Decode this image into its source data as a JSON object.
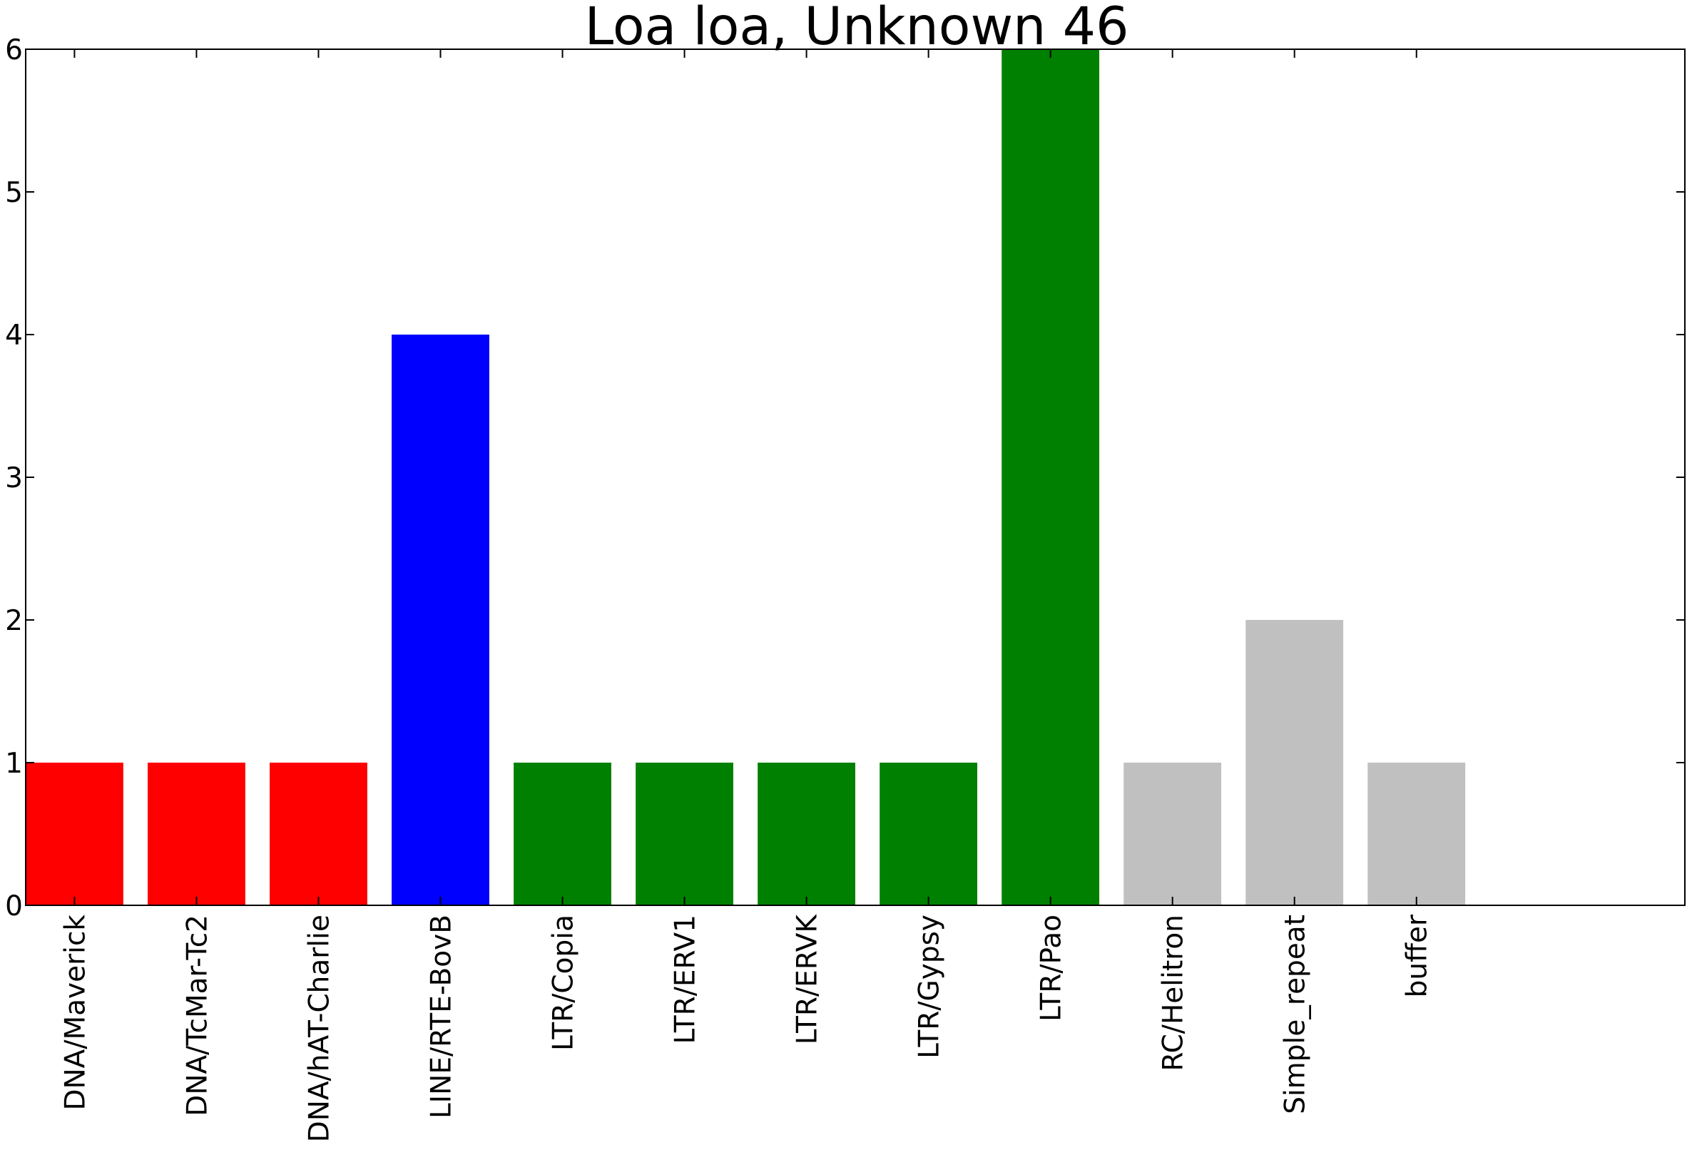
{
  "chart_data": {
    "type": "bar",
    "title": "Loa loa, Unknown 46",
    "xlabel": "",
    "ylabel": "",
    "categories": [
      "DNA/Maverick",
      "DNA/TcMar-Tc2",
      "DNA/hAT-Charlie",
      "LINE/RTE-BovB",
      "LTR/Copia",
      "LTR/ERV1",
      "LTR/ERVK",
      "LTR/Gypsy",
      "LTR/Pao",
      "RC/Helitron",
      "Simple_repeat",
      "buffer"
    ],
    "values": [
      1,
      1,
      1,
      4,
      1,
      1,
      1,
      1,
      6,
      1,
      2,
      1
    ],
    "bar_colors": [
      "#ff0000",
      "#ff0000",
      "#ff0000",
      "#0000ff",
      "#008000",
      "#008000",
      "#008000",
      "#008000",
      "#008000",
      "#c0c0c0",
      "#c0c0c0",
      "#c0c0c0"
    ],
    "ylim": [
      0,
      6
    ],
    "yticks": [
      0,
      1,
      2,
      3,
      4,
      5,
      6
    ],
    "xlim": [
      0,
      13.6
    ],
    "bar_width": 0.8,
    "grid": false,
    "legend": "none",
    "xtick_rotation": "vertical"
  }
}
